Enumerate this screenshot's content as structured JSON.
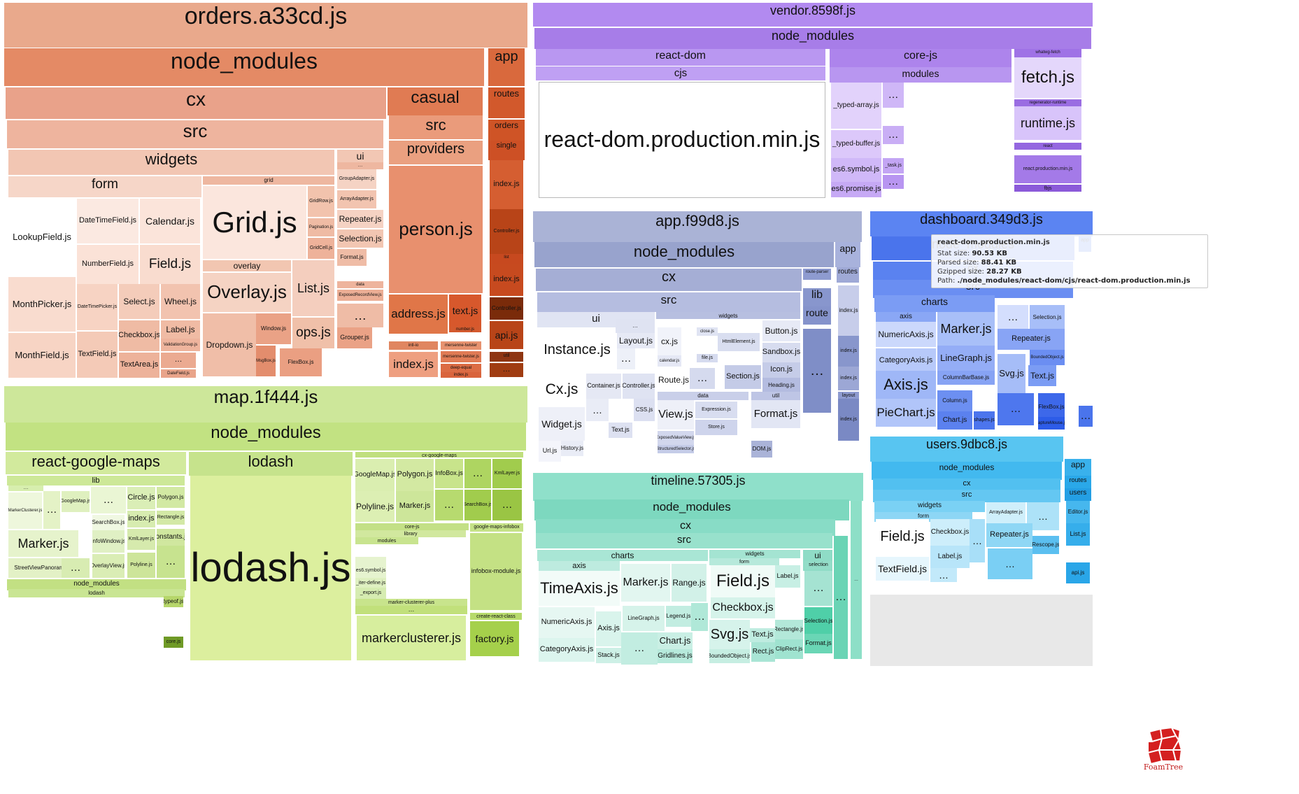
{
  "tooltip": {
    "title": "react-dom.production.min.js",
    "stat": {
      "label": "Stat size:",
      "value": "90.53 KB"
    },
    "parsed": {
      "label": "Parsed size:",
      "value": "88.41 KB"
    },
    "gzipped": {
      "label": "Gzipped size:",
      "value": "28.27 KB"
    },
    "path": {
      "label": "Path:",
      "value": "./node_modules/react-dom/cjs/react-dom.production.min.js"
    }
  },
  "branding": {
    "logo_label": "FoamTree"
  },
  "colors": {
    "orders": "#e9a98c",
    "map": "#cde79a",
    "vendor": "#b28af0",
    "app": "#aab3d6",
    "dashboard": "#5b84f2",
    "users": "#58c5f1",
    "timeline": "#8fe0ca",
    "empty": "#e8e8e8",
    "logo": "#d42020"
  },
  "cells": [
    [
      "orders.a33cd.js",
      1,
      ""
    ],
    [
      "node_modules",
      1,
      ""
    ],
    [
      "cx",
      1,
      ""
    ],
    [
      "src",
      1,
      ""
    ],
    [
      "widgets",
      1,
      ""
    ],
    [
      "form",
      1,
      ""
    ],
    [
      "LookupField.js",
      0,
      ""
    ],
    [
      "DateTimeField.js",
      0,
      ""
    ],
    [
      "Calendar.js",
      0,
      ""
    ],
    [
      "NumberField.js",
      0,
      ""
    ],
    [
      "Field.js",
      0,
      ""
    ],
    [
      "MonthPicker.js",
      0,
      ""
    ],
    [
      "DateTimePicker.js",
      0,
      ""
    ],
    [
      "Select.js",
      0,
      ""
    ],
    [
      "Wheel.js",
      0,
      ""
    ],
    [
      "Label.js",
      0,
      ""
    ],
    [
      "MonthField.js",
      0,
      ""
    ],
    [
      "TextField.js",
      0,
      ""
    ],
    [
      "Checkbox.js",
      0,
      ""
    ],
    [
      "ValidationGroup.js",
      0,
      ""
    ],
    [
      "TextArea.js",
      0,
      ""
    ],
    [
      "…",
      0,
      ""
    ],
    [
      "DateField.js",
      0,
      ""
    ],
    [
      "grid",
      1,
      ""
    ],
    [
      "Grid.js",
      0,
      ""
    ],
    [
      "GridRow.js",
      0,
      ""
    ],
    [
      "Pagination.js",
      0,
      ""
    ],
    [
      "GridCell.js",
      0,
      ""
    ],
    [
      "overlay",
      1,
      ""
    ],
    [
      "Overlay.js",
      0,
      ""
    ],
    [
      "Dropdown.js",
      0,
      ""
    ],
    [
      "Window.js",
      0,
      ""
    ],
    [
      "MsgBox.js",
      0,
      ""
    ],
    [
      "List.js",
      0,
      ""
    ],
    [
      "ops.js",
      0,
      ""
    ],
    [
      "FlexBox.js",
      0,
      ""
    ],
    [
      "ui",
      1,
      ""
    ],
    [
      "…",
      0,
      ""
    ],
    [
      "GroupAdapter.js",
      0,
      ""
    ],
    [
      "ArrayAdapter.js",
      0,
      ""
    ],
    [
      "Repeater.js",
      0,
      ""
    ],
    [
      "Selection.js",
      0,
      ""
    ],
    [
      "Format.js",
      0,
      ""
    ],
    [
      "data",
      1,
      ""
    ],
    [
      "ExposedRecordView.js",
      0,
      ""
    ],
    [
      "…",
      0,
      ""
    ],
    [
      "Grouper.js",
      0,
      ""
    ],
    [
      "casual",
      1,
      ""
    ],
    [
      "src",
      1,
      ""
    ],
    [
      "providers",
      1,
      ""
    ],
    [
      "person.js",
      0,
      ""
    ],
    [
      "address.js",
      0,
      ""
    ],
    [
      "text.js",
      0,
      ""
    ],
    [
      "number.js",
      0,
      ""
    ],
    [
      "index.js",
      0,
      ""
    ],
    [
      "mersenne-twister",
      0,
      ""
    ],
    [
      "mersenne-twister.js",
      0,
      ""
    ],
    [
      "deep-equal",
      0,
      ""
    ],
    [
      "index.js",
      0,
      ""
    ],
    [
      "intl-io",
      0,
      ""
    ],
    [
      "app",
      1,
      ""
    ],
    [
      "routes",
      1,
      ""
    ],
    [
      "orders",
      1,
      ""
    ],
    [
      "single",
      1,
      ""
    ],
    [
      "index.js",
      0,
      ""
    ],
    [
      "Controller.js",
      0,
      ""
    ],
    [
      "list",
      1,
      ""
    ],
    [
      "index.js",
      0,
      ""
    ],
    [
      "Controller.js",
      0,
      ""
    ],
    [
      "api.js",
      0,
      ""
    ],
    [
      "util",
      1,
      ""
    ],
    [
      "…",
      0,
      ""
    ],
    [
      "map.1f444.js",
      1,
      ""
    ],
    [
      "node_modules",
      1,
      ""
    ],
    [
      "react-google-maps",
      1,
      ""
    ],
    [
      "lib",
      1,
      ""
    ],
    [
      "…",
      0,
      ""
    ],
    [
      "MarkerClusterer.js",
      0,
      ""
    ],
    [
      "…",
      0,
      ""
    ],
    [
      "GoogleMap.js",
      0,
      ""
    ],
    [
      "…",
      0,
      ""
    ],
    [
      "Circle.js",
      0,
      ""
    ],
    [
      "Polygon.js",
      0,
      ""
    ],
    [
      "SearchBox.js",
      0,
      ""
    ],
    [
      "index.js",
      0,
      ""
    ],
    [
      "Rectangle.js",
      0,
      ""
    ],
    [
      "Marker.js",
      0,
      ""
    ],
    [
      "InfoWindow.js",
      0,
      ""
    ],
    [
      "KmlLayer.js",
      0,
      ""
    ],
    [
      "constants.js",
      0,
      ""
    ],
    [
      "StreetViewPanorama.js",
      0,
      ""
    ],
    [
      "…",
      0,
      ""
    ],
    [
      "OverlayView.js",
      0,
      ""
    ],
    [
      "Polyline.js",
      0,
      ""
    ],
    [
      "…",
      0,
      ""
    ],
    [
      "node_modules",
      1,
      ""
    ],
    [
      "lodash",
      1,
      ""
    ],
    [
      "typeof.js",
      0,
      ""
    ],
    [
      "core.js",
      0,
      ""
    ],
    [
      "lodash",
      1,
      ""
    ],
    [
      "lodash.js",
      0,
      ""
    ],
    [
      "cx-google-maps",
      1,
      ""
    ],
    [
      "GoogleMap.js",
      0,
      ""
    ],
    [
      "Polygon.js",
      0,
      ""
    ],
    [
      "InfoBox.js",
      0,
      ""
    ],
    [
      "…",
      0,
      ""
    ],
    [
      "KmlLayer.js",
      0,
      ""
    ],
    [
      "Polyline.js",
      0,
      ""
    ],
    [
      "Marker.js",
      0,
      ""
    ],
    [
      "…",
      0,
      ""
    ],
    [
      "SearchBox.js",
      0,
      ""
    ],
    [
      "…",
      0,
      ""
    ],
    [
      "core-js",
      1,
      ""
    ],
    [
      "library",
      1,
      ""
    ],
    [
      "modules",
      1,
      ""
    ],
    [
      "es6.symbol.js",
      0,
      ""
    ],
    [
      "_iter-define.js",
      0,
      ""
    ],
    [
      "_export.js",
      0,
      ""
    ],
    [
      "google-maps-infobox",
      1,
      ""
    ],
    [
      "infobox-module.js",
      0,
      ""
    ],
    [
      "marker-clusterer-plus",
      1,
      ""
    ],
    [
      "…",
      0,
      ""
    ],
    [
      "markerclusterer.js",
      0,
      ""
    ],
    [
      "create-react-class",
      1,
      ""
    ],
    [
      "factory.js",
      0,
      ""
    ],
    [
      "vendor.8598f.js",
      1,
      ""
    ],
    [
      "node_modules",
      1,
      ""
    ],
    [
      "react-dom",
      1,
      ""
    ],
    [
      "cjs",
      1,
      ""
    ],
    [
      "react-dom.production.min.js",
      0,
      ""
    ],
    [
      "core-js",
      1,
      ""
    ],
    [
      "modules",
      1,
      ""
    ],
    [
      "_typed-array.js",
      0,
      ""
    ],
    [
      "…",
      0,
      ""
    ],
    [
      "_typed-buffer.js",
      0,
      ""
    ],
    [
      "…",
      0,
      ""
    ],
    [
      "es6.symbol.js",
      0,
      ""
    ],
    [
      "_task.js",
      0,
      ""
    ],
    [
      "es6.promise.js",
      0,
      ""
    ],
    [
      "…",
      0,
      ""
    ],
    [
      "whatwg-fetch",
      1,
      ""
    ],
    [
      "fetch.js",
      0,
      ""
    ],
    [
      "regenerator-runtime",
      1,
      ""
    ],
    [
      "runtime.js",
      0,
      ""
    ],
    [
      "react",
      1,
      ""
    ],
    [
      "react.production.min.js",
      0,
      ""
    ],
    [
      "fbjs",
      1,
      ""
    ],
    [
      "app.f99d8.js",
      1,
      ""
    ],
    [
      "node_modules",
      1,
      ""
    ],
    [
      "cx",
      1,
      ""
    ],
    [
      "src",
      1,
      ""
    ],
    [
      "ui",
      1,
      ""
    ],
    [
      "Instance.js",
      0,
      ""
    ],
    [
      "…",
      0,
      ""
    ],
    [
      "Layout.js",
      0,
      ""
    ],
    [
      "…",
      0,
      ""
    ],
    [
      "Cx.js",
      0,
      ""
    ],
    [
      "Widget.js",
      0,
      ""
    ],
    [
      "Container.js",
      0,
      ""
    ],
    [
      "Controller.js",
      0,
      ""
    ],
    [
      "…",
      0,
      ""
    ],
    [
      "CSS.js",
      0,
      ""
    ],
    [
      "Text.js",
      0,
      ""
    ],
    [
      "Url.js",
      0,
      ""
    ],
    [
      "History.js",
      0,
      ""
    ],
    [
      "widgets",
      1,
      ""
    ],
    [
      "cx.js",
      0,
      ""
    ],
    [
      "calendar.js",
      0,
      ""
    ],
    [
      "close.js",
      0,
      ""
    ],
    [
      "file.js",
      0,
      ""
    ],
    [
      "HtmlElement.js",
      0,
      ""
    ],
    [
      "Button.js",
      0,
      ""
    ],
    [
      "Sandbox.js",
      0,
      ""
    ],
    [
      "Icon.js",
      0,
      ""
    ],
    [
      "Route.js",
      0,
      ""
    ],
    [
      "…",
      0,
      ""
    ],
    [
      "Section.js",
      0,
      ""
    ],
    [
      "Heading.js",
      0,
      ""
    ],
    [
      "data",
      1,
      ""
    ],
    [
      "View.js",
      0,
      ""
    ],
    [
      "Expression.js",
      0,
      ""
    ],
    [
      "Store.js",
      0,
      ""
    ],
    [
      "ExposedValueView.js",
      0,
      ""
    ],
    [
      "StructuredSelector.js",
      0,
      ""
    ],
    [
      "util",
      1,
      ""
    ],
    [
      "Format.js",
      0,
      ""
    ],
    [
      "DOM.js",
      0,
      ""
    ],
    [
      "route-parser",
      1,
      ""
    ],
    [
      "lib",
      1,
      ""
    ],
    [
      "route",
      1,
      ""
    ],
    [
      "…",
      0,
      ""
    ],
    [
      "app",
      1,
      ""
    ],
    [
      "routes",
      1,
      ""
    ],
    [
      "index.js",
      0,
      ""
    ],
    [
      "index.js",
      0,
      ""
    ],
    [
      "index.js",
      0,
      ""
    ],
    [
      "layout",
      1,
      ""
    ],
    [
      "index.js",
      0,
      ""
    ],
    [
      "dashboard.349d3.js",
      1,
      ""
    ],
    [
      "node_modules",
      1,
      ""
    ],
    [
      "cx",
      1,
      ""
    ],
    [
      "src",
      1,
      ""
    ],
    [
      "charts",
      1,
      ""
    ],
    [
      "axis",
      1,
      ""
    ],
    [
      "NumericAxis.js",
      0,
      ""
    ],
    [
      "Marker.js",
      0,
      ""
    ],
    [
      "CategoryAxis.js",
      0,
      ""
    ],
    [
      "LineGraph.js",
      0,
      ""
    ],
    [
      "Axis.js",
      0,
      ""
    ],
    [
      "ColumnBarBase.js",
      0,
      ""
    ],
    [
      "PieChart.js",
      0,
      ""
    ],
    [
      "Column.js",
      0,
      ""
    ],
    [
      "Chart.js",
      0,
      ""
    ],
    [
      "shapes.js",
      0,
      ""
    ],
    [
      "…",
      0,
      ""
    ],
    [
      "Selection.js",
      0,
      ""
    ],
    [
      "Repeater.js",
      0,
      ""
    ],
    [
      "BoundedObject.js",
      0,
      ""
    ],
    [
      "Svg.js",
      0,
      ""
    ],
    [
      "Text.js",
      0,
      ""
    ],
    [
      "…",
      0,
      ""
    ],
    [
      "FlexBox.js",
      0,
      ""
    ],
    [
      "captureMouse.js",
      0,
      ""
    ],
    [
      "app",
      1,
      ""
    ],
    [
      "…",
      0,
      ""
    ],
    [
      "users.9dbc8.js",
      1,
      ""
    ],
    [
      "node_modules",
      1,
      ""
    ],
    [
      "cx",
      1,
      ""
    ],
    [
      "src",
      1,
      ""
    ],
    [
      "widgets",
      1,
      ""
    ],
    [
      "form",
      1,
      ""
    ],
    [
      "Field.js",
      0,
      ""
    ],
    [
      "Checkbox.js",
      0,
      ""
    ],
    [
      "Label.js",
      0,
      ""
    ],
    [
      "…",
      0,
      ""
    ],
    [
      "TextField.js",
      0,
      ""
    ],
    [
      "…",
      0,
      ""
    ],
    [
      "ArrayAdapter.js",
      0,
      ""
    ],
    [
      "…",
      0,
      ""
    ],
    [
      "Repeater.js",
      0,
      ""
    ],
    [
      "Rescope.js",
      0,
      ""
    ],
    [
      "…",
      0,
      ""
    ],
    [
      "app",
      1,
      ""
    ],
    [
      "routes",
      1,
      ""
    ],
    [
      "users",
      1,
      ""
    ],
    [
      "Editor.js",
      0,
      ""
    ],
    [
      "List.js",
      0,
      ""
    ],
    [
      "api.js",
      0,
      ""
    ],
    [
      "timeline.57305.js",
      1,
      ""
    ],
    [
      "node_modules",
      1,
      ""
    ],
    [
      "cx",
      1,
      ""
    ],
    [
      "src",
      1,
      ""
    ],
    [
      "charts",
      1,
      ""
    ],
    [
      "axis",
      1,
      ""
    ],
    [
      "TimeAxis.js",
      0,
      ""
    ],
    [
      "Marker.js",
      0,
      ""
    ],
    [
      "Range.js",
      0,
      ""
    ],
    [
      "NumericAxis.js",
      0,
      ""
    ],
    [
      "LineGraph.js",
      0,
      ""
    ],
    [
      "Legend.js",
      0,
      ""
    ],
    [
      "…",
      0,
      ""
    ],
    [
      "Axis.js",
      0,
      ""
    ],
    [
      "Chart.js",
      0,
      ""
    ],
    [
      "CategoryAxis.js",
      0,
      ""
    ],
    [
      "Stack.js",
      0,
      ""
    ],
    [
      "…",
      0,
      ""
    ],
    [
      "Gridlines.js",
      0,
      ""
    ],
    [
      "widgets",
      1,
      ""
    ],
    [
      "form",
      1,
      ""
    ],
    [
      "Field.js",
      0,
      ""
    ],
    [
      "Label.js",
      0,
      ""
    ],
    [
      "Checkbox.js",
      0,
      ""
    ],
    [
      "Svg.js",
      0,
      ""
    ],
    [
      "Text.js",
      0,
      ""
    ],
    [
      "BoundedObject.js",
      0,
      ""
    ],
    [
      "Rectangle.js",
      0,
      ""
    ],
    [
      "Rect.js",
      0,
      ""
    ],
    [
      "ClipRect.js",
      0,
      ""
    ],
    [
      "ui",
      1,
      ""
    ],
    [
      "selection",
      1,
      ""
    ],
    [
      "…",
      0,
      ""
    ],
    [
      "Selection.js",
      0,
      ""
    ],
    [
      "Format.js",
      0,
      ""
    ],
    [
      "…",
      0,
      ""
    ],
    [
      "…",
      0,
      ""
    ]
  ]
}
